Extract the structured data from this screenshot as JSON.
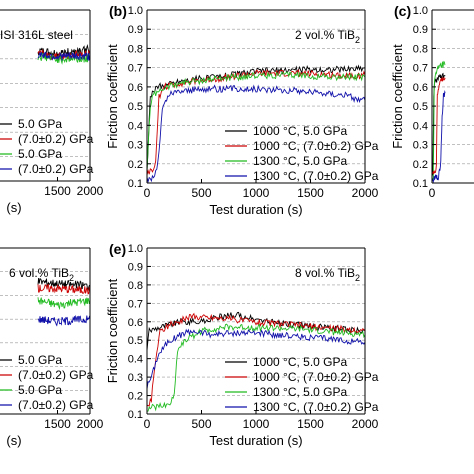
{
  "chart_data": [
    {
      "panel": "a",
      "type": "line",
      "partial": true,
      "annotation": "ISI 316L steel",
      "xlabel": "",
      "xlim_visible": [
        1200,
        2000
      ],
      "x_ticks": [
        "1500",
        "2000"
      ],
      "x_unit_label": "(s)",
      "ylim": [
        0.1,
        0.8
      ],
      "grid": "horizontal",
      "legend": {
        "position": "bottom",
        "entries": [
          "5.0 GPa",
          "(7.0±0.2) GPa",
          "5.0 GPa",
          "(7.0±0.2) GPa"
        ]
      },
      "series": [
        {
          "color": "#000000",
          "x": [
            1200,
            1500,
            2000
          ],
          "y": [
            0.63,
            0.62,
            0.64
          ]
        },
        {
          "color": "#cc0000",
          "x": [
            1200,
            1500,
            2000
          ],
          "y": [
            0.62,
            0.61,
            0.62
          ]
        },
        {
          "color": "#22bb22",
          "x": [
            1200,
            1500,
            2000
          ],
          "y": [
            0.61,
            0.6,
            0.6
          ]
        },
        {
          "color": "#1111aa",
          "x": [
            1200,
            1500,
            2000
          ],
          "y": [
            0.62,
            0.61,
            0.61
          ]
        }
      ]
    },
    {
      "panel": "b",
      "type": "line",
      "label": "(b)",
      "annotation": "2 vol.% TiB2",
      "xlabel": "Test duration (s)",
      "ylabel": "Friction coefficient",
      "xlim": [
        0,
        2000
      ],
      "ylim": [
        0.1,
        1.0
      ],
      "x_ticks": [
        "0",
        "500",
        "1000",
        "1500",
        "2000"
      ],
      "y_ticks": [
        "0.1",
        "0.2",
        "0.3",
        "0.4",
        "0.5",
        "0.6",
        "0.7",
        "0.8",
        "0.9",
        "1.0"
      ],
      "grid": "horizontal",
      "legend": {
        "position": "bottom-right",
        "entries": [
          "1000 °C, 5.0 GPa",
          "1000 °C, (7.0±0.2) GPa",
          "1300 °C, 5.0 GPa",
          "1300 °C, (7.0±0.2) GPa"
        ]
      },
      "series": [
        {
          "name": "1000 °C, 5.0 GPa",
          "color": "#000000",
          "x": [
            0,
            30,
            60,
            100,
            300,
            600,
            1000,
            1400,
            1800,
            2000
          ],
          "y": [
            0.16,
            0.55,
            0.58,
            0.6,
            0.63,
            0.65,
            0.68,
            0.69,
            0.69,
            0.7
          ]
        },
        {
          "name": "1000 °C, (7.0±0.2) GPa",
          "color": "#cc0000",
          "x": [
            0,
            50,
            80,
            110,
            150,
            300,
            600,
            1000,
            1400,
            1800,
            2000
          ],
          "y": [
            0.15,
            0.17,
            0.2,
            0.55,
            0.6,
            0.62,
            0.64,
            0.67,
            0.67,
            0.66,
            0.66
          ]
        },
        {
          "name": "1300 °C, 5.0 GPa",
          "color": "#22bb22",
          "x": [
            0,
            30,
            60,
            100,
            300,
            600,
            1000,
            1400,
            1800,
            2000
          ],
          "y": [
            0.17,
            0.5,
            0.56,
            0.58,
            0.62,
            0.64,
            0.66,
            0.66,
            0.65,
            0.65
          ]
        },
        {
          "name": "1300 °C, (7.0±0.2) GPa",
          "color": "#1111aa",
          "x": [
            0,
            60,
            100,
            140,
            200,
            300,
            600,
            1000,
            1400,
            1800,
            1900,
            2000
          ],
          "y": [
            0.12,
            0.13,
            0.2,
            0.48,
            0.56,
            0.58,
            0.59,
            0.59,
            0.58,
            0.56,
            0.54,
            0.53
          ]
        }
      ]
    },
    {
      "panel": "c",
      "type": "line",
      "label": "(c)",
      "partial": true,
      "ylabel": "Friction coefficient",
      "xlim_visible": [
        0,
        300
      ],
      "x_ticks": [
        "0"
      ],
      "ylim": [
        0.1,
        1.0
      ],
      "y_ticks": [
        "0.1",
        "0.2",
        "0.3",
        "0.4",
        "0.5",
        "0.6",
        "0.7",
        "0.8",
        "0.9",
        "1.0"
      ],
      "grid": "horizontal",
      "series": [
        {
          "color": "#000000",
          "x": [
            0,
            20,
            40,
            60,
            100,
            300
          ],
          "y": [
            0.12,
            0.14,
            0.55,
            0.62,
            0.64,
            0.66
          ]
        },
        {
          "color": "#22bb22",
          "x": [
            0,
            30,
            50,
            80,
            150,
            300
          ],
          "y": [
            0.12,
            0.14,
            0.6,
            0.66,
            0.7,
            0.72
          ]
        },
        {
          "color": "#cc0000",
          "x": [
            0,
            60,
            100,
            120,
            160,
            300
          ],
          "y": [
            0.14,
            0.15,
            0.18,
            0.55,
            0.62,
            0.64
          ]
        },
        {
          "color": "#1111aa",
          "x": [
            0,
            150,
            200,
            230,
            260,
            300
          ],
          "y": [
            0.12,
            0.13,
            0.2,
            0.45,
            0.55,
            0.57
          ]
        }
      ]
    },
    {
      "panel": "d",
      "type": "line",
      "partial": true,
      "annotation": "6 vol.% TiB2",
      "xlim_visible": [
        1200,
        2000
      ],
      "x_ticks": [
        "1500",
        "2000"
      ],
      "x_unit_label": "(s)",
      "ylim": [
        0.1,
        0.8
      ],
      "grid": "horizontal",
      "legend": {
        "position": "bottom",
        "entries": [
          "5.0 GPa",
          "(7.0±0.2) GPa",
          "5.0 GPa",
          "(7.0±0.2) GPa"
        ]
      },
      "series": [
        {
          "color": "#000000",
          "x": [
            1200,
            1500,
            2000
          ],
          "y": [
            0.66,
            0.65,
            0.64
          ]
        },
        {
          "color": "#cc0000",
          "x": [
            1200,
            1500,
            2000
          ],
          "y": [
            0.63,
            0.63,
            0.62
          ]
        },
        {
          "color": "#22bb22",
          "x": [
            1200,
            1500,
            2000
          ],
          "y": [
            0.58,
            0.56,
            0.58
          ]
        },
        {
          "color": "#1111aa",
          "x": [
            1200,
            1500,
            2000
          ],
          "y": [
            0.5,
            0.49,
            0.5
          ]
        }
      ]
    },
    {
      "panel": "e",
      "type": "line",
      "label": "(e)",
      "annotation": "8 vol.% TiB2",
      "xlabel": "Test duration (s)",
      "ylabel": "Friction coefficient",
      "xlim": [
        0,
        2000
      ],
      "ylim": [
        0.1,
        1.0
      ],
      "x_ticks": [
        "0",
        "500",
        "1000",
        "1500",
        "2000"
      ],
      "y_ticks": [
        "0.1",
        "0.2",
        "0.3",
        "0.4",
        "0.5",
        "0.6",
        "0.7",
        "0.8",
        "0.9",
        "1.0"
      ],
      "grid": "horizontal",
      "legend": {
        "position": "bottom-right",
        "entries": [
          "1000 °C, 5.0 GPa",
          "1000 °C, (7.0±0.2) GPa",
          "1300 °C, 5.0 GPa",
          "1300 °C, (7.0±0.2) GPa"
        ]
      },
      "series": [
        {
          "name": "1000 °C, 5.0 GPa",
          "color": "#000000",
          "x": [
            0,
            20,
            50,
            100,
            300,
            500,
            700,
            800,
            1000,
            1400,
            1800,
            2000
          ],
          "y": [
            0.45,
            0.55,
            0.56,
            0.57,
            0.6,
            0.6,
            0.63,
            0.64,
            0.61,
            0.58,
            0.56,
            0.55
          ]
        },
        {
          "name": "1000 °C, (7.0±0.2) GPa",
          "color": "#cc0000",
          "x": [
            0,
            40,
            80,
            120,
            200,
            400,
            700,
            1000,
            1400,
            1800,
            2000
          ],
          "y": [
            0.13,
            0.18,
            0.4,
            0.55,
            0.58,
            0.63,
            0.62,
            0.6,
            0.58,
            0.56,
            0.55
          ]
        },
        {
          "name": "1300 °C, 5.0 GPa",
          "color": "#22bb22",
          "x": [
            0,
            100,
            200,
            250,
            280,
            350,
            500,
            700,
            1000,
            1400,
            1800,
            2000
          ],
          "y": [
            0.13,
            0.14,
            0.15,
            0.2,
            0.45,
            0.5,
            0.55,
            0.57,
            0.57,
            0.56,
            0.54,
            0.53
          ]
        },
        {
          "name": "1300 °C, (7.0±0.2) GPa",
          "color": "#1111aa",
          "x": [
            0,
            50,
            100,
            200,
            400,
            600,
            800,
            1000,
            1400,
            1800,
            2000
          ],
          "y": [
            0.25,
            0.32,
            0.42,
            0.5,
            0.55,
            0.53,
            0.54,
            0.54,
            0.52,
            0.5,
            0.49
          ]
        }
      ]
    }
  ]
}
